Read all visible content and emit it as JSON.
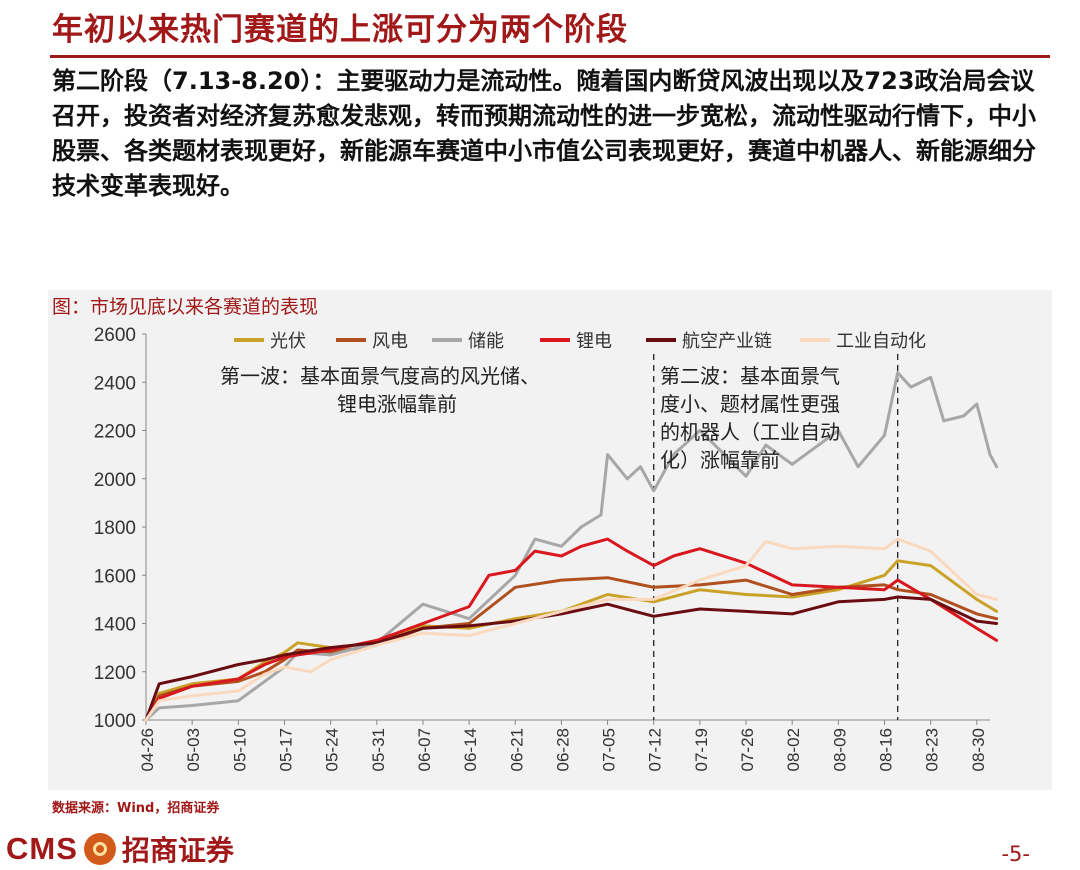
{
  "slide": {
    "title": "年初以来热门赛道的上涨可分为两个阶段",
    "body_label": "第二阶段（7.13-8.20）：",
    "body_text": "主要驱动力是流动性。随着国内断贷风波出现以及723政治局会议召开，投资者对经济复苏愈发悲观，转而预期流动性的进一步宽松，流动性驱动行情下，中小股票、各类题材表现更好，新能源车赛道中小市值公司表现更好，赛道中机器人、新能源细分技术变革表现好。",
    "chart_caption": "图：市场见底以来各赛道的表现",
    "source": "数据来源：Wind，招商证券",
    "logo_text": "CMS",
    "logo_cn": "招商证券",
    "page_number": "-5-"
  },
  "chart_data": {
    "type": "line",
    "ylim": [
      1000,
      2600
    ],
    "yticks": [
      1000,
      1200,
      1400,
      1600,
      1800,
      2000,
      2200,
      2400,
      2600
    ],
    "xticks": [
      "04-26",
      "05-03",
      "05-10",
      "05-17",
      "05-24",
      "05-31",
      "06-07",
      "06-14",
      "06-21",
      "06-28",
      "07-05",
      "07-12",
      "07-19",
      "07-26",
      "08-02",
      "08-09",
      "08-16",
      "08-23",
      "08-30"
    ],
    "x_start": "04-26",
    "n_points": 129,
    "legend_placement": "top",
    "grid": false,
    "vlines": [
      "07-12",
      "08-18"
    ],
    "annotations": [
      {
        "text": "第一波：基本面景气度高的风光储、\n锂电涨幅靠前",
        "at": [
          "05-16",
          2450
        ]
      },
      {
        "text": "第二波：基本面景气\n度小、题材属性更强\n的机器人（工业自动\n化）涨幅靠前",
        "at": [
          "07-13",
          2450
        ]
      }
    ],
    "series": [
      {
        "name": "光伏",
        "color": "#c9a227",
        "points": [
          [
            "04-26",
            1000
          ],
          [
            "04-28",
            1110
          ],
          [
            "05-03",
            1150
          ],
          [
            "05-10",
            1170
          ],
          [
            "05-14",
            1240
          ],
          [
            "05-17",
            1280
          ],
          [
            "05-19",
            1320
          ],
          [
            "05-24",
            1300
          ],
          [
            "05-31",
            1320
          ],
          [
            "06-07",
            1390
          ],
          [
            "06-14",
            1380
          ],
          [
            "06-21",
            1420
          ],
          [
            "06-28",
            1450
          ],
          [
            "07-05",
            1520
          ],
          [
            "07-12",
            1490
          ],
          [
            "07-19",
            1540
          ],
          [
            "07-26",
            1520
          ],
          [
            "08-02",
            1510
          ],
          [
            "08-09",
            1540
          ],
          [
            "08-16",
            1600
          ],
          [
            "08-18",
            1660
          ],
          [
            "08-23",
            1640
          ],
          [
            "08-30",
            1500
          ],
          [
            "09-02",
            1450
          ]
        ]
      },
      {
        "name": "风电",
        "color": "#b0501e",
        "points": [
          [
            "04-26",
            1000
          ],
          [
            "04-28",
            1100
          ],
          [
            "05-03",
            1140
          ],
          [
            "05-10",
            1160
          ],
          [
            "05-14",
            1200
          ],
          [
            "05-17",
            1250
          ],
          [
            "05-19",
            1290
          ],
          [
            "05-24",
            1280
          ],
          [
            "05-31",
            1310
          ],
          [
            "06-07",
            1380
          ],
          [
            "06-14",
            1400
          ],
          [
            "06-21",
            1550
          ],
          [
            "06-28",
            1580
          ],
          [
            "07-05",
            1590
          ],
          [
            "07-12",
            1550
          ],
          [
            "07-19",
            1560
          ],
          [
            "07-26",
            1580
          ],
          [
            "08-02",
            1520
          ],
          [
            "08-09",
            1550
          ],
          [
            "08-16",
            1560
          ],
          [
            "08-18",
            1540
          ],
          [
            "08-23",
            1520
          ],
          [
            "08-30",
            1440
          ],
          [
            "09-02",
            1420
          ]
        ]
      },
      {
        "name": "储能",
        "color": "#a7a7a7",
        "points": [
          [
            "04-26",
            1000
          ],
          [
            "04-28",
            1050
          ],
          [
            "05-03",
            1060
          ],
          [
            "05-10",
            1080
          ],
          [
            "05-14",
            1160
          ],
          [
            "05-17",
            1220
          ],
          [
            "05-19",
            1280
          ],
          [
            "05-24",
            1270
          ],
          [
            "05-31",
            1320
          ],
          [
            "06-07",
            1480
          ],
          [
            "06-14",
            1420
          ],
          [
            "06-21",
            1600
          ],
          [
            "06-24",
            1750
          ],
          [
            "06-28",
            1720
          ],
          [
            "07-01",
            1800
          ],
          [
            "07-04",
            1850
          ],
          [
            "07-05",
            2100
          ],
          [
            "07-08",
            2000
          ],
          [
            "07-10",
            2050
          ],
          [
            "07-12",
            1950
          ],
          [
            "07-15",
            2100
          ],
          [
            "07-19",
            2200
          ],
          [
            "07-22",
            2120
          ],
          [
            "07-26",
            2010
          ],
          [
            "07-29",
            2140
          ],
          [
            "08-02",
            2060
          ],
          [
            "08-05",
            2120
          ],
          [
            "08-09",
            2200
          ],
          [
            "08-12",
            2050
          ],
          [
            "08-16",
            2180
          ],
          [
            "08-18",
            2440
          ],
          [
            "08-20",
            2380
          ],
          [
            "08-23",
            2420
          ],
          [
            "08-25",
            2240
          ],
          [
            "08-28",
            2260
          ],
          [
            "08-30",
            2310
          ],
          [
            "09-01",
            2100
          ],
          [
            "09-02",
            2050
          ]
        ]
      },
      {
        "name": "锂电",
        "color": "#d8181e",
        "points": [
          [
            "04-26",
            1000
          ],
          [
            "04-28",
            1090
          ],
          [
            "05-03",
            1140
          ],
          [
            "05-10",
            1170
          ],
          [
            "05-14",
            1230
          ],
          [
            "05-17",
            1260
          ],
          [
            "05-19",
            1270
          ],
          [
            "05-24",
            1290
          ],
          [
            "05-31",
            1330
          ],
          [
            "06-07",
            1400
          ],
          [
            "06-14",
            1470
          ],
          [
            "06-17",
            1600
          ],
          [
            "06-21",
            1620
          ],
          [
            "06-24",
            1700
          ],
          [
            "06-28",
            1680
          ],
          [
            "07-01",
            1720
          ],
          [
            "07-05",
            1750
          ],
          [
            "07-08",
            1700
          ],
          [
            "07-12",
            1640
          ],
          [
            "07-15",
            1680
          ],
          [
            "07-19",
            1710
          ],
          [
            "07-26",
            1650
          ],
          [
            "08-02",
            1560
          ],
          [
            "08-09",
            1550
          ],
          [
            "08-16",
            1540
          ],
          [
            "08-18",
            1580
          ],
          [
            "08-23",
            1500
          ],
          [
            "08-30",
            1380
          ],
          [
            "09-02",
            1330
          ]
        ]
      },
      {
        "name": "航空产业链",
        "color": "#6a0d12",
        "points": [
          [
            "04-26",
            1000
          ],
          [
            "04-28",
            1150
          ],
          [
            "05-03",
            1180
          ],
          [
            "05-10",
            1230
          ],
          [
            "05-14",
            1250
          ],
          [
            "05-17",
            1270
          ],
          [
            "05-24",
            1300
          ],
          [
            "05-31",
            1320
          ],
          [
            "06-07",
            1380
          ],
          [
            "06-14",
            1390
          ],
          [
            "06-21",
            1410
          ],
          [
            "06-28",
            1440
          ],
          [
            "07-05",
            1480
          ],
          [
            "07-12",
            1430
          ],
          [
            "07-19",
            1460
          ],
          [
            "07-26",
            1450
          ],
          [
            "08-02",
            1440
          ],
          [
            "08-09",
            1490
          ],
          [
            "08-16",
            1500
          ],
          [
            "08-18",
            1510
          ],
          [
            "08-23",
            1500
          ],
          [
            "08-30",
            1410
          ],
          [
            "09-02",
            1400
          ]
        ]
      },
      {
        "name": "工业自动化",
        "color": "#fbd9be",
        "points": [
          [
            "04-26",
            1000
          ],
          [
            "04-28",
            1080
          ],
          [
            "05-03",
            1100
          ],
          [
            "05-10",
            1120
          ],
          [
            "05-14",
            1190
          ],
          [
            "05-17",
            1220
          ],
          [
            "05-21",
            1200
          ],
          [
            "05-24",
            1250
          ],
          [
            "05-31",
            1310
          ],
          [
            "06-07",
            1360
          ],
          [
            "06-14",
            1350
          ],
          [
            "06-21",
            1400
          ],
          [
            "06-28",
            1450
          ],
          [
            "07-05",
            1500
          ],
          [
            "07-12",
            1500
          ],
          [
            "07-19",
            1580
          ],
          [
            "07-26",
            1640
          ],
          [
            "07-29",
            1740
          ],
          [
            "08-02",
            1710
          ],
          [
            "08-09",
            1720
          ],
          [
            "08-16",
            1710
          ],
          [
            "08-18",
            1750
          ],
          [
            "08-23",
            1700
          ],
          [
            "08-30",
            1520
          ],
          [
            "09-02",
            1500
          ]
        ]
      }
    ]
  }
}
